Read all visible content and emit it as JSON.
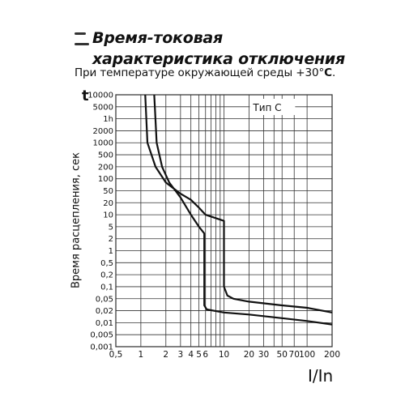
{
  "header": {
    "title": "Время-токовая характеристика отключения",
    "subtitle_prefix": "При температуре окружающей среды +30°",
    "subtitle_bold": "С",
    "subtitle_suffix": "."
  },
  "chart_data": {
    "type": "line",
    "ylabel_symbol": "t",
    "ylabel": "Время расцепления, сек",
    "xlabel": "I/In",
    "legend": "Тип С",
    "legend_placement": "top-right",
    "grid": true,
    "y_ticks": [
      "10000",
      "5000",
      "1h",
      "2000",
      "1000",
      "500",
      "200",
      "100",
      "50",
      "20",
      "10",
      "5",
      "2",
      "1",
      "0,5",
      "0,2",
      "0,1",
      "0,05",
      "0,02",
      "0,01",
      "0,005",
      "0,001"
    ],
    "x_ticks": [
      {
        "label": "0,5",
        "value": 0.5
      },
      {
        "label": "1",
        "value": 1
      },
      {
        "label": "2",
        "value": 2
      },
      {
        "label": "3",
        "value": 3
      },
      {
        "label": "4",
        "value": 4
      },
      {
        "label": "5",
        "value": 5
      },
      {
        "label": "6",
        "value": 6
      },
      {
        "label": "10",
        "value": 10
      },
      {
        "label": "20",
        "value": 20
      },
      {
        "label": "30",
        "value": 30
      },
      {
        "label": "50",
        "value": 50
      },
      {
        "label": "70",
        "value": 70
      },
      {
        "label": "100",
        "value": 100
      },
      {
        "label": "200",
        "value": 200
      }
    ],
    "x_gridlines": [
      0.5,
      1,
      2,
      3,
      4,
      5,
      6,
      7,
      8,
      9,
      10,
      20,
      30,
      40,
      50,
      70,
      100,
      200
    ],
    "series": [
      {
        "points": [
          [
            1.13,
            10000
          ],
          [
            1.2,
            1000
          ],
          [
            1.5,
            200
          ],
          [
            2.0,
            80
          ],
          [
            3.0,
            40
          ],
          [
            4.0,
            25
          ],
          [
            5.0,
            15
          ],
          [
            6.0,
            10
          ],
          [
            10,
            7
          ],
          [
            10,
            0.1
          ],
          [
            11,
            0.06
          ],
          [
            13,
            0.05
          ],
          [
            20,
            0.04
          ],
          [
            50,
            0.03
          ],
          [
            100,
            0.025
          ],
          [
            200,
            0.018
          ]
        ]
      },
      {
        "points": [
          [
            1.45,
            10000
          ],
          [
            1.55,
            1000
          ],
          [
            1.8,
            200
          ],
          [
            2.2,
            80
          ],
          [
            3.0,
            30
          ],
          [
            4.0,
            10
          ],
          [
            5.0,
            5
          ],
          [
            5.8,
            3
          ],
          [
            5.8,
            0.03
          ],
          [
            6.2,
            0.022
          ],
          [
            10,
            0.018
          ],
          [
            20,
            0.016
          ],
          [
            50,
            0.013
          ],
          [
            100,
            0.011
          ],
          [
            200,
            0.009
          ]
        ]
      }
    ]
  }
}
